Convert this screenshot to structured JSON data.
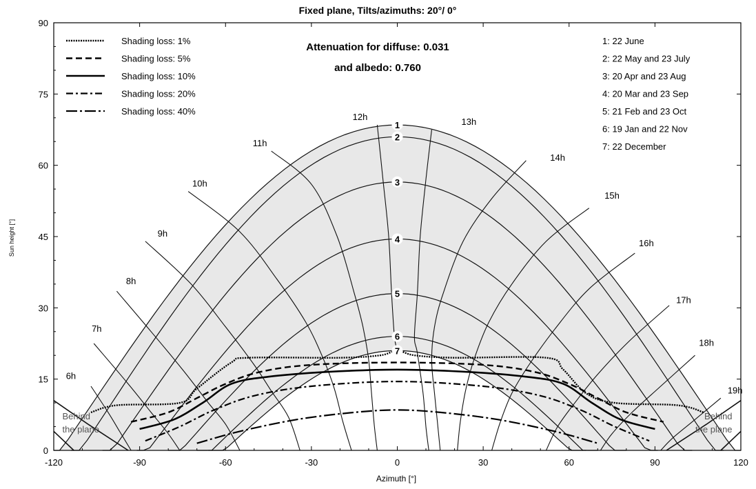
{
  "chart_data": {
    "type": "line",
    "title": "Fixed plane, Tilts/azimuths: 20°/ 0°",
    "xlabel": "Azimuth [°]",
    "ylabel": "Sun height [°]",
    "xlim": [
      -120,
      120
    ],
    "ylim": [
      0,
      90
    ],
    "xticks": [
      -120,
      -90,
      -60,
      -30,
      0,
      30,
      60,
      90,
      120
    ],
    "yticks": [
      0,
      15,
      30,
      45,
      60,
      75,
      90
    ],
    "grid": false,
    "annotation": [
      "Attenuation for diffuse: 0.031",
      "and albedo: 0.760"
    ],
    "behind_plane_label": [
      "Behind",
      "the plane"
    ],
    "shading_legend": {
      "placement": "top-left",
      "entries": [
        {
          "name": "Shading loss: 1%",
          "style": "dotted"
        },
        {
          "name": "Shading loss: 5%",
          "style": "dashed"
        },
        {
          "name": "Shading loss: 10%",
          "style": "solid-thick"
        },
        {
          "name": "Shading loss: 20%",
          "style": "dash-dot"
        },
        {
          "name": "Shading loss: 40%",
          "style": "dash-dot-long"
        }
      ]
    },
    "date_legend": {
      "placement": "top-right",
      "entries": [
        "1: 22 June",
        "2: 22 May and 23 July",
        "3: 20 Apr and 23 Aug",
        "4: 20 Mar and 23 Sep",
        "5: 21 Feb and 23 Oct",
        "6: 19 Jan and 22 Nov",
        "7: 22 December"
      ]
    },
    "sun_paths": [
      {
        "label": "1",
        "peak": 68.5,
        "half_width": 121,
        "end_height": -3
      },
      {
        "label": "2",
        "peak": 66.0,
        "half_width": 114,
        "end_height": -3
      },
      {
        "label": "3",
        "peak": 56.5,
        "half_width": 103,
        "end_height": -3
      },
      {
        "label": "4",
        "peak": 44.5,
        "half_width": 91,
        "end_height": -3
      },
      {
        "label": "5",
        "peak": 33.0,
        "half_width": 80,
        "end_height": -3
      },
      {
        "label": "6",
        "peak": 24.0,
        "half_width": 70,
        "end_height": -3
      },
      {
        "label": "7",
        "peak": 21.0,
        "half_width": 66,
        "end_height": -3
      }
    ],
    "hour_labels": [
      {
        "label": "6h",
        "az": -114,
        "h": 15
      },
      {
        "label": "7h",
        "az": -105,
        "h": 25
      },
      {
        "label": "8h",
        "az": -93,
        "h": 35
      },
      {
        "label": "9h",
        "az": -82,
        "h": 45
      },
      {
        "label": "10h",
        "az": -69,
        "h": 55.5
      },
      {
        "label": "11h",
        "az": -48,
        "h": 64
      },
      {
        "label": "12h",
        "az": -13,
        "h": 69.5
      },
      {
        "label": "13h",
        "az": 25,
        "h": 68.5
      },
      {
        "label": "14h",
        "az": 56,
        "h": 61
      },
      {
        "label": "15h",
        "az": 75,
        "h": 53
      },
      {
        "label": "16h",
        "az": 87,
        "h": 43
      },
      {
        "label": "17h",
        "az": 100,
        "h": 31
      },
      {
        "label": "18h",
        "az": 108,
        "h": 22
      },
      {
        "label": "19h",
        "az": 118,
        "h": 12
      }
    ],
    "hour_lines": [
      {
        "h_offset": -6,
        "points": [
          [
            -107,
            13.5
          ],
          [
            -101,
            8
          ],
          [
            -97,
            4
          ],
          [
            -93,
            0
          ]
        ]
      },
      {
        "h_offset": -5,
        "points": [
          [
            -106,
            22.5
          ],
          [
            -94,
            14
          ],
          [
            -86,
            8
          ],
          [
            -80,
            3.5
          ],
          [
            -76,
            0
          ]
        ]
      },
      {
        "h_offset": -4,
        "points": [
          [
            -98,
            33.5
          ],
          [
            -86,
            25
          ],
          [
            -75,
            17
          ],
          [
            -66,
            10
          ],
          [
            -60,
            5.5
          ],
          [
            -55,
            0
          ]
        ]
      },
      {
        "h_offset": -3,
        "points": [
          [
            -88,
            44
          ],
          [
            -72,
            35
          ],
          [
            -60,
            26
          ],
          [
            -50,
            18
          ],
          [
            -44,
            12.5
          ],
          [
            -38,
            7
          ],
          [
            -34,
            0
          ]
        ]
      },
      {
        "h_offset": -2,
        "points": [
          [
            -73,
            54.5
          ],
          [
            -55,
            46
          ],
          [
            -42,
            36
          ],
          [
            -32,
            27
          ],
          [
            -26,
            19.5
          ],
          [
            -22,
            13
          ],
          [
            -19,
            6
          ],
          [
            -16,
            0
          ]
        ]
      },
      {
        "h_offset": -1,
        "points": [
          [
            -44,
            63
          ],
          [
            -30,
            56
          ],
          [
            -21,
            45
          ],
          [
            -15,
            33
          ],
          [
            -12,
            26
          ],
          [
            -10,
            19
          ],
          [
            -9,
            12
          ],
          [
            -8,
            5
          ],
          [
            -7,
            0
          ]
        ]
      },
      {
        "h_offset": 0,
        "points": [
          [
            -7,
            68.5
          ],
          [
            -5,
            57
          ],
          [
            -3,
            45
          ],
          [
            -2,
            33
          ],
          [
            -1,
            24
          ],
          [
            0,
            21
          ]
        ]
      },
      {
        "h_offset": 1,
        "points": [
          [
            12,
            67.5
          ],
          [
            10,
            57
          ],
          [
            8,
            45
          ],
          [
            7,
            33
          ],
          [
            6,
            24
          ],
          [
            7,
            20.5
          ],
          [
            9,
            12
          ],
          [
            10,
            5
          ],
          [
            11,
            0
          ]
        ]
      },
      {
        "h_offset": 2,
        "points": [
          [
            45,
            61
          ],
          [
            33,
            53
          ],
          [
            23,
            44
          ],
          [
            16,
            33
          ],
          [
            13,
            26
          ],
          [
            12,
            19
          ],
          [
            13,
            12
          ],
          [
            14,
            6
          ],
          [
            15,
            0
          ]
        ]
      },
      {
        "h_offset": 3,
        "points": [
          [
            67,
            51
          ],
          [
            52,
            44
          ],
          [
            40,
            35
          ],
          [
            32,
            27
          ],
          [
            27,
            19.5
          ],
          [
            24,
            13
          ],
          [
            22,
            6
          ],
          [
            21,
            0
          ]
        ]
      },
      {
        "h_offset": 4,
        "points": [
          [
            83,
            41.5
          ],
          [
            67,
            34
          ],
          [
            55,
            25.5
          ],
          [
            46,
            18
          ],
          [
            40,
            12
          ],
          [
            36,
            6
          ],
          [
            33,
            0
          ]
        ]
      },
      {
        "h_offset": 5,
        "points": [
          [
            95,
            30.5
          ],
          [
            81,
            23
          ],
          [
            70,
            16
          ],
          [
            62,
            10
          ],
          [
            56,
            5
          ],
          [
            52,
            0
          ]
        ]
      },
      {
        "h_offset": 6,
        "points": [
          [
            104,
            20
          ],
          [
            92,
            13.5
          ],
          [
            82,
            8
          ],
          [
            75,
            3.5
          ],
          [
            71,
            0
          ]
        ]
      },
      {
        "h_offset": 7,
        "points": [
          [
            113,
            11
          ],
          [
            103,
            6
          ],
          [
            96,
            2.5
          ],
          [
            92,
            0
          ]
        ]
      }
    ],
    "shading_lines": [
      {
        "name": "Shading loss: 1%",
        "points": [
          [
            -107,
            8
          ],
          [
            -98,
            9.5
          ],
          [
            -76,
            10
          ],
          [
            -70,
            13
          ],
          [
            -58,
            18.5
          ],
          [
            -52,
            19.5
          ],
          [
            -20,
            19.5
          ],
          [
            -6,
            20
          ],
          [
            0,
            21
          ],
          [
            6,
            20
          ],
          [
            20,
            19.5
          ],
          [
            52,
            19.5
          ],
          [
            58,
            17
          ],
          [
            66,
            12
          ],
          [
            76,
            10
          ],
          [
            98,
            9.5
          ],
          [
            107,
            8
          ]
        ]
      },
      {
        "name": "Shading loss: 5%",
        "points": [
          [
            -93,
            6
          ],
          [
            -80,
            8
          ],
          [
            -70,
            11
          ],
          [
            -60,
            14
          ],
          [
            -48,
            16.5
          ],
          [
            -30,
            18
          ],
          [
            0,
            18.5
          ],
          [
            30,
            18
          ],
          [
            48,
            16.5
          ],
          [
            60,
            14
          ],
          [
            70,
            11
          ],
          [
            80,
            8
          ],
          [
            93,
            6
          ]
        ]
      },
      {
        "name": "Shading loss: 10%",
        "points": [
          [
            -90,
            4.5
          ],
          [
            -78,
            6.5
          ],
          [
            -68,
            10
          ],
          [
            -58,
            14
          ],
          [
            -45,
            15.5
          ],
          [
            -25,
            16.5
          ],
          [
            0,
            17
          ],
          [
            25,
            16.5
          ],
          [
            45,
            15.5
          ],
          [
            58,
            14
          ],
          [
            68,
            10
          ],
          [
            78,
            6.5
          ],
          [
            90,
            4.5
          ]
        ]
      },
      {
        "name": "Shading loss: 20%",
        "points": [
          [
            -88,
            2
          ],
          [
            -76,
            5
          ],
          [
            -64,
            8.5
          ],
          [
            -50,
            11.5
          ],
          [
            -30,
            13.5
          ],
          [
            0,
            14.5
          ],
          [
            30,
            13.5
          ],
          [
            50,
            11.5
          ],
          [
            64,
            8.5
          ],
          [
            76,
            5
          ],
          [
            88,
            2
          ]
        ]
      },
      {
        "name": "Shading loss: 40%",
        "points": [
          [
            -70,
            1.5
          ],
          [
            -55,
            4
          ],
          [
            -35,
            6.5
          ],
          [
            -15,
            8
          ],
          [
            0,
            8.5
          ],
          [
            15,
            8
          ],
          [
            35,
            6.5
          ],
          [
            55,
            4
          ],
          [
            70,
            1.5
          ]
        ]
      }
    ],
    "behind_plane_lines": [
      {
        "points": [
          [
            -120,
            10.5
          ],
          [
            -108,
            5.5
          ],
          [
            -94,
            0
          ]
        ]
      },
      {
        "points": [
          [
            -120,
            4
          ],
          [
            -113,
            0
          ]
        ]
      },
      {
        "points": [
          [
            120,
            10.5
          ],
          [
            108,
            5.5
          ],
          [
            94,
            0
          ]
        ]
      },
      {
        "points": [
          [
            120,
            4
          ],
          [
            113,
            0
          ]
        ]
      }
    ]
  }
}
